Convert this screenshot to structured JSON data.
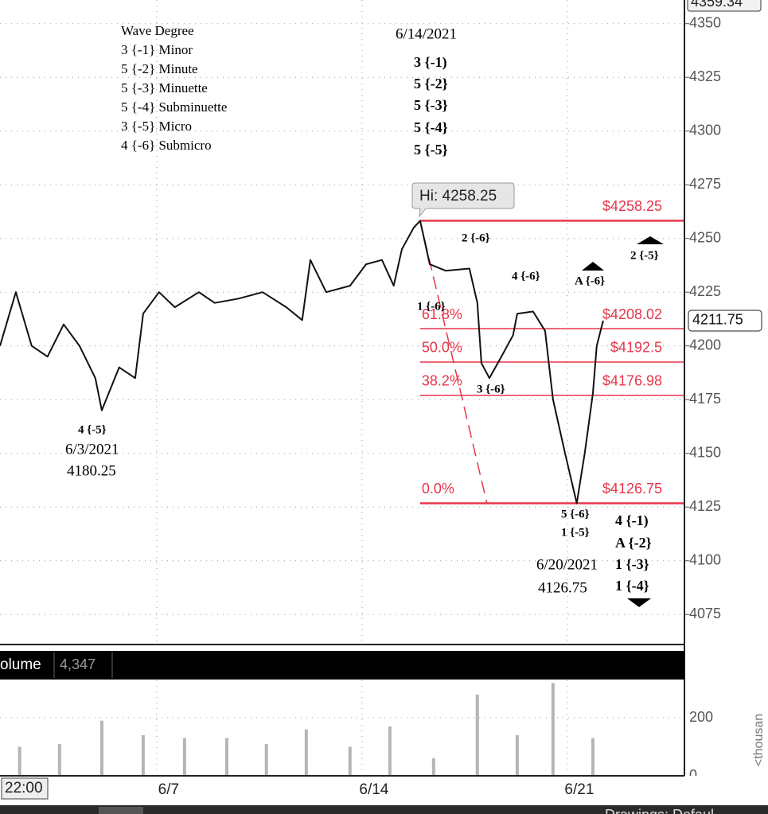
{
  "chart_data": {
    "type": "line",
    "x": [
      1.66,
      2.2,
      2.74,
      3.28,
      3.83,
      4.37,
      4.91,
      5.13,
      5.72,
      6.27,
      6.54,
      7.08,
      7.62,
      8.44,
      8.98,
      9.79,
      10.61,
      11.42,
      11.96,
      12.24,
      12.78,
      13.59,
      14.14,
      14.68,
      15.08,
      15.36,
      15.76,
      15.98,
      16.31,
      16.85,
      17.66,
      17.93,
      18.07,
      18.34,
      18.75,
      19.15,
      19.29,
      19.83,
      20.24,
      20.51,
      20.92,
      21.32,
      21.59,
      21.87,
      22.0,
      22.22
    ],
    "series": [
      {
        "color": "#111111",
        "values": [
          4200,
          4225,
          4200,
          4195,
          4210,
          4200,
          4185,
          4170,
          4190,
          4185,
          4215,
          4225,
          4218,
          4225,
          4220,
          4222,
          4225,
          4218,
          4212,
          4240,
          4225,
          4228,
          4238,
          4240,
          4228,
          4245,
          4255,
          4258.25,
          4238,
          4235,
          4236,
          4220,
          4192,
          4185,
          4195,
          4205,
          4215,
          4216,
          4207,
          4175,
          4150,
          4126.75,
          4150,
          4178,
          4200,
          4211.75
        ]
      }
    ],
    "xlim": [
      1.66,
      24.99
    ],
    "xticks": [
      {
        "value": 7,
        "label": "6/7"
      },
      {
        "value": 14,
        "label": "6/14"
      },
      {
        "value": 21,
        "label": "6/21"
      }
    ],
    "ylim": [
      4061,
      4361
    ],
    "yticks": [
      4075,
      4100,
      4125,
      4150,
      4175,
      4200,
      4225,
      4250,
      4275,
      4300,
      4325,
      4350
    ],
    "grid": true,
    "time_label": "22:00",
    "last_price": 4211.75,
    "axis_high": 4359.34,
    "hi_callout": "Hi: 4258.25",
    "fib_color": "#e8354a",
    "fib_levels": [
      {
        "price": 4258.25,
        "price_label": "$4258.25"
      },
      {
        "price": 4208.02,
        "percent": "61.8%",
        "price_label": "$4208.02"
      },
      {
        "price": 4192.5,
        "percent": "50.0%",
        "price_label": "$4192.5"
      },
      {
        "price": 4176.98,
        "percent": "38.2%",
        "price_label": "$4176.98"
      },
      {
        "price": 4126.75,
        "percent": "0.0%",
        "price_label": "$4126.75"
      }
    ],
    "annotations": [
      "Wave Degree",
      "3 {-1} Minor",
      "5 {-2} Minute",
      "5 {-3} Minuette",
      "5 {-4} Subminuette",
      "3 {-5} Micro",
      "4 {-6} Submicro",
      "6/14/2021",
      "3 {-1)",
      "5 {-2}",
      "5 {-3}",
      "5 {-4}",
      "5 {-5}",
      "4 {-5}",
      "6/3/2021",
      "4180.25",
      "2 {-6}",
      "2 {-5}",
      "4 {-6}",
      "A {-6}",
      "1 {-6}",
      "3 {-6}",
      "5 {-6}",
      "1 {-5}",
      "6/20/2021",
      "4126.75",
      "4 {-1)",
      "A {-2}",
      "1 {-3}",
      "1 {-4}"
    ],
    "volume": {
      "title": "olume",
      "readout": "4,347",
      "color": "#b5b5b5",
      "x": [
        2.33,
        3.69,
        5.13,
        6.54,
        7.95,
        9.39,
        10.74,
        12.1,
        13.59,
        14.95,
        16.44,
        17.93,
        19.29,
        20.51,
        21.87
      ],
      "values": [
        100,
        110,
        190,
        140,
        130,
        130,
        110,
        160,
        100,
        170,
        60,
        280,
        140,
        320,
        130
      ],
      "ylim": [
        0,
        329
      ],
      "yticks": [
        0,
        200
      ]
    },
    "toolbar_text": "Drawings: Defaul"
  }
}
